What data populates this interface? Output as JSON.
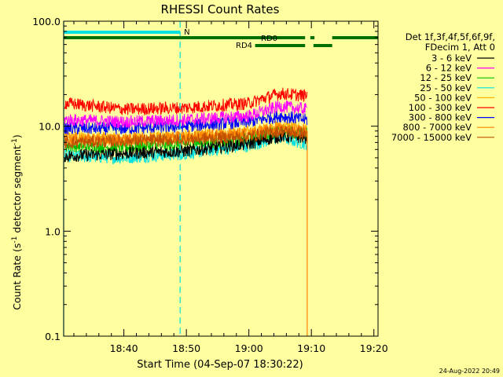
{
  "chart_data": {
    "type": "line",
    "title": "RHESSI Count Rates",
    "xlabel": "Start Time (04-Sep-07 18:30:22)",
    "ylabel_main": "Count Rate (s",
    "ylabel_sup1": "-1",
    "ylabel_mid": " detector segment",
    "ylabel_sup2": "-1",
    "ylabel_end": ")",
    "yscale": "log",
    "ylim": [
      0.1,
      100.0
    ],
    "xlim": [
      "18:30:22",
      "19:20:40"
    ],
    "x_ticks": [
      "18:40",
      "18:50",
      "19:00",
      "19:10",
      "19:20"
    ],
    "y_ticks": [
      "100.0",
      "10.0",
      "1.0",
      "0.1"
    ],
    "legend_header_1": "Det 1f,3f,4f,5f,6f,9f,",
    "legend_header_2": "FDecim 1, Att 0",
    "series": [
      {
        "name": "3 - 6 keV",
        "color": "#000000",
        "values_at_ticks": {
          "18:31": 5.2,
          "18:40": 5.5,
          "18:50": 5.8,
          "19:00": 6.8,
          "19:05": 8.0,
          "19:09": 7.8
        }
      },
      {
        "name": "6 - 12 keV",
        "color": "#ff00ff",
        "values_at_ticks": {
          "18:31": 11.5,
          "18:40": 11.0,
          "18:50": 11.5,
          "19:00": 12.5,
          "19:05": 15.5,
          "19:09": 14.5
        }
      },
      {
        "name": "12 - 25 keV",
        "color": "#00c000",
        "values_at_ticks": {
          "18:31": 6.5,
          "18:40": 6.3,
          "18:50": 6.8,
          "19:00": 7.5,
          "19:05": 9.0,
          "19:09": 8.5
        }
      },
      {
        "name": "25 - 50 keV",
        "color": "#00e0e0",
        "values_at_ticks": {
          "18:31": 5.2,
          "18:40": 5.0,
          "18:50": 5.5,
          "19:00": 6.5,
          "19:05": 7.8,
          "19:09": 6.8
        }
      },
      {
        "name": "50 - 100 keV",
        "color": "#ffb000",
        "values_at_ticks": {
          "18:31": 8.0,
          "18:40": 7.5,
          "18:50": 8.0,
          "19:00": 8.8,
          "19:05": 10.0,
          "19:09": 9.5
        }
      },
      {
        "name": "100 - 300 keV",
        "color": "#ff0000",
        "values_at_ticks": {
          "18:31": 16.5,
          "18:40": 14.5,
          "18:50": 15.0,
          "19:00": 16.5,
          "19:05": 20.5,
          "19:09": 19.5
        }
      },
      {
        "name": "300 - 800 keV",
        "color": "#0000ff",
        "values_at_ticks": {
          "18:31": 9.5,
          "18:40": 9.5,
          "18:50": 10.0,
          "19:00": 11.0,
          "19:05": 12.5,
          "19:09": 11.5
        }
      },
      {
        "name": "800 - 7000 keV",
        "color": "#ff8000",
        "values_at_ticks": {
          "18:31": 7.5,
          "18:40": 7.5,
          "18:50": 8.0,
          "19:00": 8.5,
          "19:05": 9.5,
          "19:09": 9.0
        }
      },
      {
        "name": "7000 - 15000 keV",
        "color": "#c05000",
        "values_at_ticks": {
          "18:31": 7.0,
          "18:40": 7.2,
          "18:50": 7.5,
          "19:00": 8.0,
          "19:05": 9.0,
          "19:09": 8.5
        }
      }
    ],
    "data_end_time": "19:09:20",
    "flags": [
      {
        "label": "N",
        "color": "#00e0e0",
        "start": "18:30:22",
        "end": "18:49:00"
      },
      {
        "label": "RD0",
        "color": "#007000",
        "segments": [
          [
            "18:30:22",
            "19:09:00"
          ],
          [
            "19:09:50",
            "19:10:30"
          ],
          [
            "19:13:20",
            "19:20:40"
          ]
        ]
      },
      {
        "label": "RD4",
        "color": "#007000",
        "segments": [
          [
            "19:01:00",
            "19:09:00"
          ],
          [
            "19:10:20",
            "19:13:20"
          ]
        ]
      }
    ],
    "vertical_markers": [
      {
        "time": "18:30:22",
        "color": "#00e0e0",
        "style": "solid"
      },
      {
        "time": "18:49:00",
        "color": "#00e0e0",
        "style": "dashed"
      },
      {
        "time": "19:09:20",
        "color": "#ff8000",
        "style": "solid"
      }
    ],
    "footer_timestamp": "24-Aug-2022 20:49",
    "colors": {
      "background": "#ffffa0",
      "axes": "#000000"
    }
  }
}
